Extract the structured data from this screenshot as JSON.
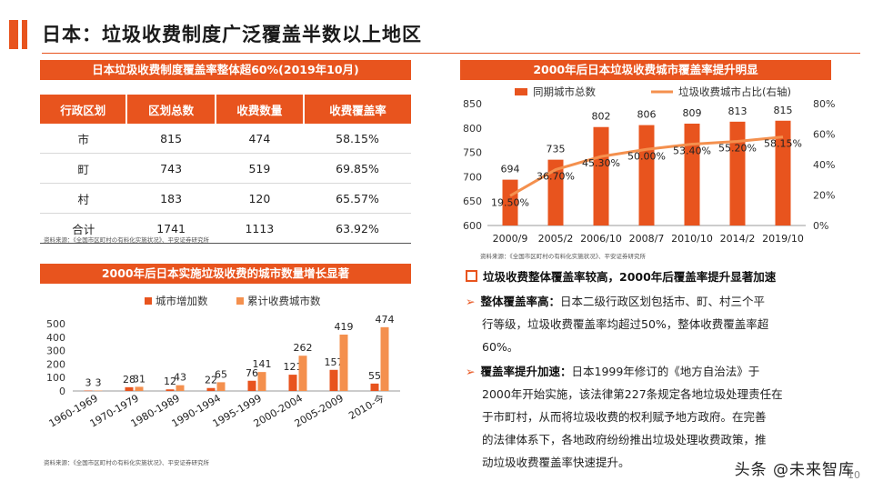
{
  "page": {
    "title": "日本：垃圾收费制度广泛覆盖半数以上地区",
    "page_number": "10",
    "watermark": "头条 @未来智库"
  },
  "table_panel": {
    "banner": "日本垃圾收费制度覆盖率整体超60%(2019年10月)",
    "headers": [
      "行政区划",
      "区划总数",
      "收费数量",
      "收费覆盖率"
    ],
    "rows": [
      [
        "市",
        "815",
        "474",
        "58.15%"
      ],
      [
        "町",
        "743",
        "519",
        "69.85%"
      ],
      [
        "村",
        "183",
        "120",
        "65.57%"
      ],
      [
        "合计",
        "1741",
        "1113",
        "63.92%"
      ]
    ],
    "source": "资料来源：《全国市区町村の有料化实施状况》、平安证券研究所"
  },
  "chart_panels": {
    "top_right_banner": "2000年后日本垃圾收费城市覆盖率提升明显",
    "top_right_source": "资料来源：《全国市区町村の有料化实施状况》、平安证券研究所",
    "bottom_left_banner": "2000年后日本实施垃圾收费的城市数量增长显著",
    "bottom_left_source": "资料来源：《全国市区町村の有料化实施状况》、平安证券研究所"
  },
  "text_panel": {
    "heading": "垃圾收费整体覆盖率较高，2000年后覆盖率提升显著加速",
    "bullets": [
      {
        "label": "整体覆盖率高：",
        "lines": [
          "日本二级行政区划包括市、町、村三个平",
          "行等级，垃圾收费覆盖率均超过50%，整体收费覆盖率超",
          "60%。"
        ]
      },
      {
        "label": "覆盖率提升加速：",
        "lines": [
          "日本1999年修订的《地方自治法》于",
          "2000年开始实施，该法律第227条规定各地垃圾处理责任在",
          "于市町村，从而将垃圾收费的权利赋予地方政府。在完善",
          "的法律体系下，各地政府纷纷推出垃圾处理收费政策，推",
          "动垃圾收费覆盖率快速提升。"
        ]
      }
    ]
  },
  "colors": {
    "accent": "#E8541E",
    "bar_dark": "#E8541E",
    "bar_light": "#F4904E",
    "line": "#F4904E"
  },
  "chart_data": [
    {
      "type": "bar",
      "categories": [
        "2000/9",
        "2005/2",
        "2006/10",
        "2008/7",
        "2010/10",
        "2014/2",
        "2019/10"
      ],
      "series": [
        {
          "name": "同期城市总数",
          "type": "bar",
          "axis": "left",
          "values": [
            694,
            735,
            802,
            806,
            809,
            813,
            815
          ],
          "labels": [
            "694",
            "735",
            "802",
            "806",
            "809",
            "813",
            "815"
          ]
        },
        {
          "name": "垃圾收费城市占比(右轴)",
          "type": "line",
          "axis": "right",
          "values": [
            19.5,
            36.7,
            45.3,
            50.0,
            53.4,
            55.2,
            58.15
          ],
          "labels": [
            "19.50%",
            "36.70%",
            "45.30%",
            "50.00%",
            "53.40%",
            "55.20%",
            "58.15%"
          ]
        }
      ],
      "ylim": [
        600,
        850
      ],
      "yticks": [
        "600",
        "650",
        "700",
        "750",
        "800",
        "850"
      ],
      "y2lim": [
        0,
        80
      ],
      "y2ticks": [
        "0%",
        "20%",
        "40%",
        "60%",
        "80%"
      ],
      "legend": "top"
    },
    {
      "type": "bar",
      "categories": [
        "1960-1969",
        "1970-1979",
        "1980-1989",
        "1990-1994",
        "1995-1999",
        "2000-2004",
        "2005-2009",
        "2010-今"
      ],
      "series": [
        {
          "name": "城市增加数",
          "values": [
            3,
            28,
            12,
            22,
            76,
            121,
            157,
            55
          ]
        },
        {
          "name": "累计收费城市数",
          "values": [
            3,
            31,
            43,
            65,
            141,
            262,
            419,
            474
          ]
        }
      ],
      "ylim": [
        0,
        500
      ],
      "yticks": [
        "0",
        "100",
        "200",
        "300",
        "400",
        "500"
      ],
      "legend": "top"
    }
  ]
}
